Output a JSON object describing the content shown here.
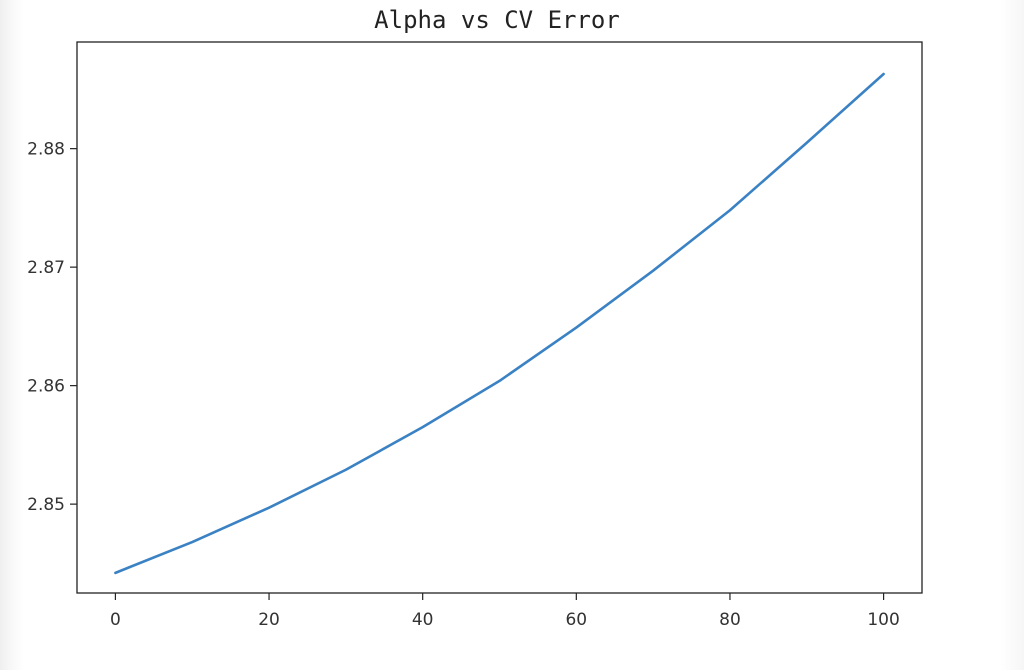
{
  "chart_data": {
    "type": "line",
    "title": "Alpha vs CV Error",
    "xlabel": "",
    "ylabel": "",
    "xlim": [
      -5,
      105
    ],
    "ylim": [
      2.8425,
      2.889
    ],
    "x_ticks": [
      0,
      20,
      40,
      60,
      80,
      100
    ],
    "x_tick_labels": [
      "0",
      "20",
      "40",
      "60",
      "80",
      "100"
    ],
    "y_ticks": [
      2.85,
      2.86,
      2.87,
      2.88
    ],
    "y_tick_labels": [
      "2.85",
      "2.86",
      "2.87",
      "2.88"
    ],
    "grid": false,
    "legend": "none",
    "series": [
      {
        "color": "#3b82c4",
        "x": [
          0,
          10,
          20,
          30,
          40,
          50,
          60,
          70,
          80,
          90,
          100
        ],
        "y": [
          2.8442,
          2.8468,
          2.8497,
          2.8529,
          2.8565,
          2.8604,
          2.8649,
          2.8697,
          2.8748,
          2.8805,
          2.8863
        ]
      }
    ]
  }
}
